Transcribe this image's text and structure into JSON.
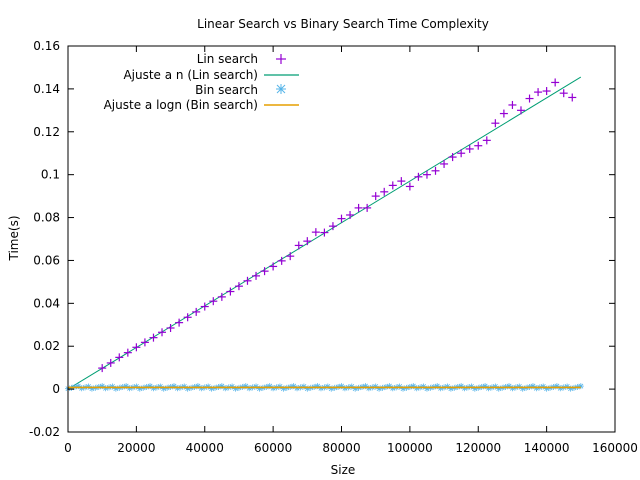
{
  "chart_data": {
    "type": "scatter",
    "title": "Linear Search vs Binary Search Time Complexity",
    "xlabel": "Size",
    "ylabel": "Time(s)",
    "xlim": [
      0,
      160000
    ],
    "ylim": [
      -0.02,
      0.16
    ],
    "xticks": [
      0,
      20000,
      40000,
      60000,
      80000,
      100000,
      120000,
      140000,
      160000
    ],
    "yticks": [
      -0.02,
      0,
      0.02,
      0.04,
      0.06,
      0.08,
      0.1,
      0.12,
      0.14,
      0.16
    ],
    "xtick_labels": [
      "0",
      "20000",
      "40000",
      "60000",
      "80000",
      "100000",
      "120000",
      "140000",
      "160000"
    ],
    "ytick_labels": [
      "-0.02",
      "0",
      "0.02",
      "0.04",
      "0.06",
      "0.08",
      "0.1",
      "0.12",
      "0.14",
      "0.16"
    ],
    "grid": false,
    "legend_position": "top-left",
    "series": [
      {
        "name": "Lin search",
        "kind": "points",
        "marker": "plus",
        "color": "#9400d3",
        "x": [
          10000,
          12500,
          15000,
          17500,
          20000,
          22500,
          25000,
          27500,
          30000,
          32500,
          35000,
          37500,
          40000,
          42500,
          45000,
          47500,
          50000,
          52500,
          55000,
          57500,
          60000,
          62500,
          65000,
          67500,
          70000,
          72500,
          75000,
          77500,
          80000,
          82500,
          85000,
          87500,
          90000,
          92500,
          95000,
          97500,
          100000,
          102500,
          105000,
          107500,
          110000,
          112500,
          115000,
          117500,
          120000,
          122500,
          125000,
          127500,
          130000,
          132500,
          135000,
          137500,
          140000,
          142500,
          145000,
          147500
        ],
        "y": [
          0.0098,
          0.0122,
          0.0148,
          0.017,
          0.0195,
          0.0218,
          0.024,
          0.0265,
          0.0285,
          0.031,
          0.0335,
          0.036,
          0.0385,
          0.041,
          0.043,
          0.0455,
          0.048,
          0.0505,
          0.0528,
          0.055,
          0.0572,
          0.0598,
          0.062,
          0.067,
          0.069,
          0.0732,
          0.073,
          0.076,
          0.0795,
          0.0812,
          0.0845,
          0.0845,
          0.09,
          0.092,
          0.095,
          0.097,
          0.0945,
          0.099,
          0.1,
          0.1018,
          0.105,
          0.1082,
          0.11,
          0.112,
          0.1135,
          0.116,
          0.124,
          0.1285,
          0.1325,
          0.13,
          0.1355,
          0.1385,
          0.139,
          0.143,
          0.138,
          0.136
        ]
      },
      {
        "name": "Ajuste a n (Lin search)",
        "kind": "line",
        "color": "#009e73",
        "x": [
          0,
          150000
        ],
        "y": [
          0.0,
          0.1455
        ]
      },
      {
        "name": "Bin search",
        "kind": "points",
        "marker": "star",
        "color": "#56b4e9",
        "x_start": 0,
        "x_end": 150000,
        "x_step": 1000,
        "y_center": 0.0008,
        "y_spread": 0.0006
      },
      {
        "name": "Ajuste a logn (Bin search)",
        "kind": "line",
        "color": "#e69f00",
        "x": [
          0,
          150000
        ],
        "y": [
          0.0008,
          0.0008
        ]
      }
    ]
  }
}
